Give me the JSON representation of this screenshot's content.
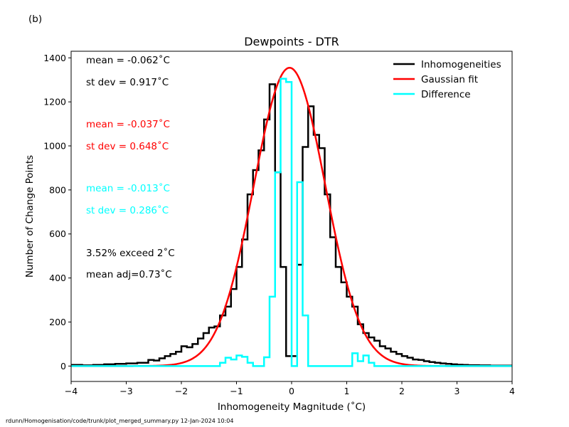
{
  "panel_label": "(b)",
  "footer": "rdunn/Homogenisation/code/trunk/plot_merged_summary.py   12-Jan-2024 10:04",
  "chart_data": {
    "type": "histogram",
    "title": "Dewpoints - DTR",
    "xlabel": "Inhomogeneity Magnitude (˚C)",
    "ylabel": "Number of Change Points",
    "xlim": [
      -4,
      4
    ],
    "ylim": [
      -70,
      1430
    ],
    "xticks": [
      -4,
      -3,
      -2,
      -1,
      0,
      1,
      2,
      3,
      4
    ],
    "xtick_labels": [
      "−4",
      "−3",
      "−2",
      "−1",
      "0",
      "1",
      "2",
      "3",
      "4"
    ],
    "yticks": [
      0,
      200,
      400,
      600,
      800,
      1000,
      1200,
      1400
    ],
    "ytick_labels": [
      "0",
      "200",
      "400",
      "600",
      "800",
      "1000",
      "1200",
      "1400"
    ],
    "grid": false,
    "legend_position": "upper right",
    "bin_edges_start": -4.0,
    "bin_width": 0.1,
    "series": [
      {
        "name": "Inhomogeneities",
        "color": "#000000",
        "style": "step",
        "values": [
          5,
          5,
          3,
          3,
          5,
          5,
          8,
          8,
          10,
          10,
          12,
          12,
          15,
          15,
          28,
          25,
          35,
          45,
          55,
          65,
          90,
          85,
          100,
          125,
          150,
          175,
          180,
          230,
          270,
          350,
          450,
          575,
          780,
          890,
          980,
          1120,
          1280,
          880,
          450,
          45,
          45,
          460,
          995,
          1180,
          1050,
          990,
          780,
          585,
          450,
          380,
          315,
          270,
          190,
          150,
          130,
          115,
          90,
          80,
          65,
          55,
          45,
          38,
          30,
          28,
          22,
          18,
          15,
          12,
          10,
          8,
          6,
          5,
          4,
          4,
          3,
          3,
          2,
          2,
          2,
          2
        ]
      },
      {
        "name": "Gaussian fit",
        "color": "#ff0000",
        "style": "line",
        "amplitude": 1355,
        "mean": -0.037,
        "sd": 0.648
      },
      {
        "name": "Difference",
        "color": "#00ffff",
        "style": "step",
        "values": [
          0,
          0,
          0,
          0,
          0,
          0,
          0,
          0,
          0,
          0,
          0,
          0,
          0,
          0,
          0,
          0,
          0,
          0,
          0,
          0,
          0,
          0,
          0,
          0,
          0,
          0,
          0,
          15,
          38,
          30,
          48,
          42,
          15,
          0,
          0,
          40,
          315,
          880,
          1305,
          1290,
          0,
          835,
          230,
          0,
          0,
          0,
          0,
          0,
          0,
          0,
          0,
          58,
          22,
          48,
          15,
          0,
          0,
          0,
          0,
          0,
          0,
          0,
          0,
          0,
          0,
          0,
          0,
          0,
          0,
          0,
          0,
          0,
          0,
          0,
          0,
          0,
          0,
          0,
          0,
          0
        ]
      }
    ],
    "annotations": [
      {
        "text": "mean = -0.062˚C",
        "color": "#000000"
      },
      {
        "text": "st dev =  0.917˚C",
        "color": "#000000"
      },
      {
        "text": "mean = -0.037˚C",
        "color": "#ff0000"
      },
      {
        "text": "st dev =  0.648˚C",
        "color": "#ff0000"
      },
      {
        "text": "mean = -0.013˚C",
        "color": "#00ffff"
      },
      {
        "text": "st dev =  0.286˚C",
        "color": "#00ffff"
      },
      {
        "text": "3.52% exceed 2˚C",
        "color": "#000000"
      },
      {
        "text": "mean adj=0.73˚C",
        "color": "#000000"
      }
    ]
  }
}
